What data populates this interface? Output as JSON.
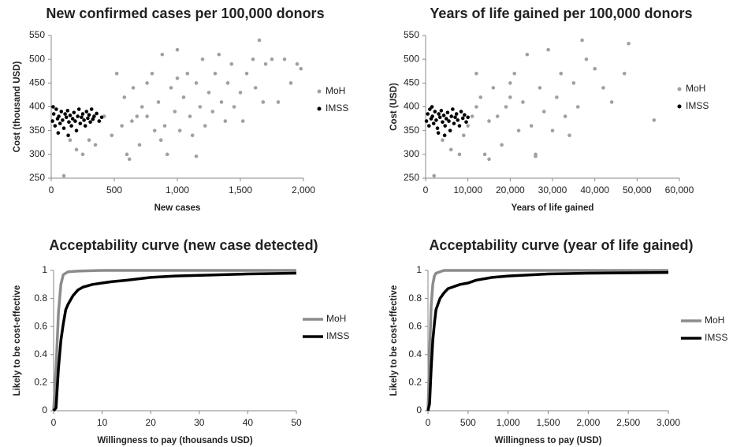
{
  "chart_data": [
    {
      "type": "scatter",
      "title": "New confirmed cases per 100,000 donors",
      "x_label": "New cases",
      "y_label": "Cost (thousand USD)",
      "xlim": [
        0,
        2000
      ],
      "xticks": [
        0,
        500,
        {
          "value": 1000,
          "label": "1,000"
        },
        {
          "value": 1500,
          "label": "1,500"
        },
        {
          "value": 2000,
          "label": "2,000"
        }
      ],
      "ylim": [
        250,
        550
      ],
      "yticks": [
        250,
        300,
        350,
        400,
        450,
        500,
        550
      ],
      "legend": "right",
      "series": [
        {
          "name": "MoH",
          "color": "#a0a0a0",
          "x": [
            100,
            150,
            200,
            250,
            300,
            350,
            420,
            480,
            520,
            560,
            580,
            600,
            620,
            650,
            680,
            700,
            720,
            760,
            800,
            820,
            850,
            880,
            900,
            920,
            950,
            980,
            1000,
            1020,
            1050,
            1080,
            1100,
            1120,
            1150,
            1180,
            1200,
            1220,
            1250,
            1280,
            1300,
            1330,
            1350,
            1380,
            1400,
            1430,
            1450,
            1500,
            1520,
            1550,
            1600,
            1620,
            1650,
            1680,
            1700,
            1750,
            1800,
            1850,
            1900,
            1950,
            1980,
            1150,
            870,
            1000,
            760,
            640
          ],
          "values": [
            255,
            330,
            310,
            300,
            330,
            320,
            380,
            340,
            470,
            360,
            420,
            300,
            290,
            440,
            380,
            320,
            400,
            450,
            470,
            350,
            410,
            510,
            360,
            300,
            440,
            390,
            520,
            350,
            420,
            470,
            380,
            340,
            450,
            400,
            500,
            360,
            430,
            390,
            470,
            510,
            410,
            370,
            450,
            490,
            400,
            430,
            370,
            470,
            500,
            440,
            540,
            410,
            490,
            500,
            410,
            500,
            450,
            490,
            480,
            296,
            330,
            460,
            380,
            370
          ]
        },
        {
          "name": "IMSS",
          "color": "#000000",
          "x": [
            10,
            20,
            30,
            40,
            50,
            60,
            70,
            80,
            90,
            100,
            110,
            120,
            130,
            140,
            150,
            160,
            170,
            180,
            190,
            200,
            210,
            220,
            230,
            240,
            250,
            260,
            270,
            280,
            290,
            300,
            310,
            320,
            330,
            340,
            360,
            380,
            400,
            15,
            55,
            135
          ],
          "values": [
            370,
            385,
            360,
            395,
            375,
            380,
            365,
            390,
            372,
            355,
            385,
            378,
            392,
            368,
            382,
            360,
            375,
            388,
            370,
            350,
            380,
            395,
            365,
            378,
            385,
            372,
            360,
            390,
            376,
            383,
            368,
            395,
            374,
            380,
            386,
            370,
            378,
            400,
            345,
            340
          ]
        }
      ]
    },
    {
      "type": "scatter",
      "title": "Years of life gained per 100,000 donors",
      "x_label": "Years of life gained",
      "y_label": "Cost  (USD)",
      "xlim": [
        0,
        60000
      ],
      "xticks": [
        0,
        {
          "value": 10000,
          "label": "10,000"
        },
        {
          "value": 20000,
          "label": "20,000"
        },
        {
          "value": 30000,
          "label": "30,000"
        },
        {
          "value": 40000,
          "label": "40,000"
        },
        {
          "value": 50000,
          "label": "50,000"
        },
        {
          "value": 60000,
          "label": "60,000"
        }
      ],
      "ylim": [
        250,
        550
      ],
      "yticks": [
        250,
        300,
        350,
        400,
        450,
        500,
        550
      ],
      "legend": "right",
      "series": [
        {
          "name": "MoH",
          "color": "#a0a0a0",
          "x": [
            2000,
            4000,
            6000,
            8000,
            9000,
            10000,
            11000,
            12000,
            13000,
            14000,
            15000,
            16000,
            17000,
            18000,
            19000,
            20000,
            21000,
            22000,
            23000,
            24000,
            25000,
            26000,
            27000,
            28000,
            29000,
            30000,
            31000,
            32000,
            33000,
            34000,
            35000,
            36000,
            37000,
            38000,
            40000,
            42000,
            44000,
            47000,
            48000,
            54000,
            15000,
            20000,
            26000,
            12000
          ],
          "values": [
            255,
            330,
            310,
            300,
            340,
            360,
            380,
            470,
            420,
            300,
            290,
            440,
            380,
            320,
            400,
            450,
            470,
            350,
            410,
            510,
            360,
            300,
            440,
            390,
            520,
            350,
            420,
            470,
            380,
            340,
            450,
            400,
            540,
            500,
            480,
            440,
            410,
            470,
            533,
            372,
            370,
            420,
            296,
            400
          ]
        },
        {
          "name": "IMSS",
          "color": "#000000",
          "x": [
            200,
            500,
            800,
            1000,
            1300,
            1600,
            1900,
            2200,
            2500,
            2800,
            3100,
            3400,
            3700,
            4000,
            4300,
            4600,
            4900,
            5200,
            5500,
            5800,
            6100,
            6400,
            6700,
            7000,
            7300,
            7600,
            8000,
            8400,
            8800,
            9200,
            9600,
            10000,
            1500,
            3000,
            4500
          ],
          "values": [
            370,
            385,
            360,
            395,
            375,
            380,
            365,
            390,
            372,
            355,
            385,
            378,
            392,
            368,
            382,
            360,
            375,
            388,
            370,
            350,
            380,
            395,
            365,
            378,
            385,
            372,
            360,
            390,
            376,
            383,
            368,
            378,
            400,
            345,
            340
          ]
        }
      ]
    },
    {
      "type": "line",
      "title": "Acceptability curve (new case detected)",
      "x_label": "Willingness to pay (thousands USD)",
      "y_label": "Likely to be cost-effective",
      "xlim": [
        0,
        50
      ],
      "xticks": [
        0,
        10,
        20,
        30,
        40,
        50
      ],
      "ylim": [
        0,
        1
      ],
      "yticks": [
        0,
        0.2,
        0.4,
        0.6,
        0.8,
        1
      ],
      "legend": "right",
      "series": [
        {
          "name": "MoH",
          "color": "#8c8c8c",
          "x": [
            0,
            0.5,
            1,
            1.5,
            2,
            3,
            5,
            10,
            20,
            30,
            40,
            50
          ],
          "values": [
            0,
            0.3,
            0.7,
            0.9,
            0.97,
            0.99,
            0.995,
            1,
            1,
            1,
            1,
            1
          ]
        },
        {
          "name": "IMSS",
          "color": "#000000",
          "x": [
            0,
            0.5,
            1,
            1.5,
            2,
            2.5,
            3,
            4,
            5,
            6,
            8,
            10,
            12,
            15,
            20,
            25,
            30,
            40,
            50
          ],
          "values": [
            0,
            0.02,
            0.3,
            0.5,
            0.62,
            0.72,
            0.76,
            0.82,
            0.86,
            0.88,
            0.9,
            0.91,
            0.92,
            0.93,
            0.95,
            0.96,
            0.965,
            0.975,
            0.98
          ]
        }
      ]
    },
    {
      "type": "line",
      "title": "Acceptability curve (year of life gained)",
      "x_label": "Willingness to pay (USD)",
      "y_label": "Likely to be cost-effective",
      "xlim": [
        0,
        3000
      ],
      "xticks": [
        0,
        500,
        {
          "value": 1000,
          "label": "1,000"
        },
        {
          "value": 1500,
          "label": "1,500"
        },
        {
          "value": 2000,
          "label": "2,000"
        },
        {
          "value": 2500,
          "label": "2,500"
        },
        {
          "value": 3000,
          "label": "3,000"
        }
      ],
      "ylim": [
        0,
        1
      ],
      "yticks": [
        0,
        0.2,
        0.4,
        0.6,
        0.8,
        1
      ],
      "legend": "right",
      "series": [
        {
          "name": "MoH",
          "color": "#8c8c8c",
          "x": [
            0,
            20,
            40,
            60,
            80,
            100,
            150,
            200,
            500,
            1000,
            2000,
            3000
          ],
          "values": [
            0,
            0.4,
            0.75,
            0.9,
            0.96,
            0.98,
            0.99,
            1,
            1,
            1,
            1,
            1
          ]
        },
        {
          "name": "IMSS",
          "color": "#000000",
          "x": [
            0,
            20,
            40,
            60,
            80,
            100,
            150,
            200,
            250,
            300,
            400,
            500,
            600,
            800,
            1000,
            1500,
            2000,
            3000
          ],
          "values": [
            0,
            0.05,
            0.3,
            0.5,
            0.62,
            0.72,
            0.8,
            0.84,
            0.87,
            0.88,
            0.9,
            0.91,
            0.93,
            0.95,
            0.96,
            0.975,
            0.98,
            0.985
          ]
        }
      ]
    }
  ]
}
